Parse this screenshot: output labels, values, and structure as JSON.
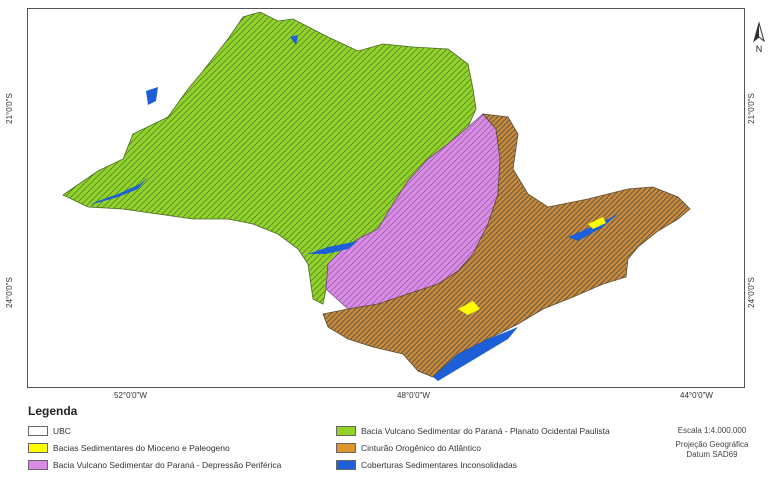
{
  "map": {
    "ticks": {
      "bottom": [
        "52°0'0\"W",
        "48°0'0\"W",
        "44°0'0\"W"
      ],
      "left": [
        "21°0'0\"S",
        "24°0'0\"S"
      ],
      "right": [
        "21°0'0\"S",
        "24°0'0\"S"
      ]
    },
    "north_label": "N"
  },
  "legend": {
    "title": "Legenda",
    "items": [
      {
        "label": "UBC",
        "color": "#ffffff"
      },
      {
        "label": "Bacias Sedimentares do Mioceno e Paleogeno",
        "color": "#ffff00"
      },
      {
        "label": "Bacia Vulcano Sedimentar do Paraná - Depressão Periférica",
        "color": "#d98be6"
      },
      {
        "label": "Bacia Vulcano Sedimentar do Paraná - Planato Ocidental Paulista",
        "color": "#8fd32a"
      },
      {
        "label": "Cinturão Orogênico do Atlântico",
        "color": "#e0962f"
      },
      {
        "label": "Coberturas Sedimentares Inconsolidadas",
        "color": "#1c5fd6"
      }
    ]
  },
  "scale": {
    "scale_text": "Escala 1:4.000.000",
    "projection": "Projeção Geográfica",
    "datum": "Datum SAD69"
  }
}
